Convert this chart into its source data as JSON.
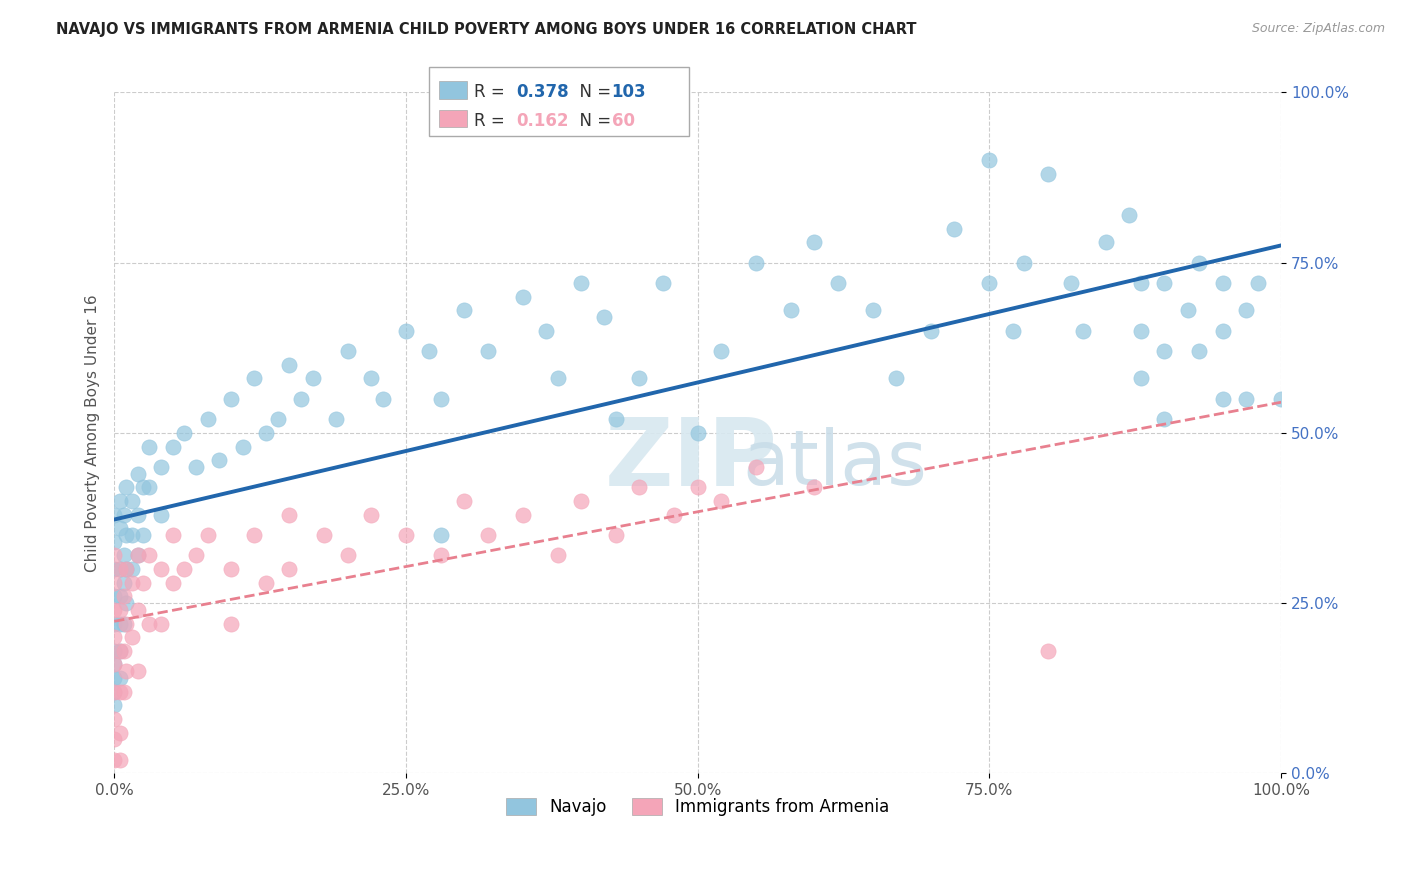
{
  "title": "NAVAJO VS IMMIGRANTS FROM ARMENIA CHILD POVERTY AMONG BOYS UNDER 16 CORRELATION CHART",
  "source": "Source: ZipAtlas.com",
  "ylabel": "Child Poverty Among Boys Under 16",
  "xlim": [
    0,
    1
  ],
  "ylim": [
    0,
    1
  ],
  "xticks": [
    0.0,
    0.25,
    0.5,
    0.75,
    1.0
  ],
  "xticklabels": [
    "0.0%",
    "25.0%",
    "50.0%",
    "75.0%",
    "100.0%"
  ],
  "yticks": [
    0.0,
    0.25,
    0.5,
    0.75,
    1.0
  ],
  "yticklabels": [
    "0.0%",
    "25.0%",
    "50.0%",
    "75.0%",
    "100.0%"
  ],
  "navajo_R": 0.378,
  "navajo_N": 103,
  "armenia_R": 0.162,
  "armenia_N": 60,
  "navajo_color": "#92c5de",
  "armenia_color": "#f4a5b8",
  "navajo_line_color": "#2166ac",
  "armenia_line_color": "#e8808f",
  "ytick_color": "#4472c4",
  "xtick_color": "#555555",
  "navajo_scatter": [
    [
      0.0,
      0.38
    ],
    [
      0.0,
      0.34
    ],
    [
      0.0,
      0.3
    ],
    [
      0.0,
      0.26
    ],
    [
      0.0,
      0.22
    ],
    [
      0.0,
      0.18
    ],
    [
      0.0,
      0.16
    ],
    [
      0.0,
      0.14
    ],
    [
      0.0,
      0.12
    ],
    [
      0.0,
      0.1
    ],
    [
      0.005,
      0.4
    ],
    [
      0.005,
      0.36
    ],
    [
      0.005,
      0.3
    ],
    [
      0.005,
      0.26
    ],
    [
      0.005,
      0.22
    ],
    [
      0.005,
      0.18
    ],
    [
      0.005,
      0.14
    ],
    [
      0.008,
      0.38
    ],
    [
      0.008,
      0.32
    ],
    [
      0.008,
      0.28
    ],
    [
      0.008,
      0.22
    ],
    [
      0.01,
      0.42
    ],
    [
      0.01,
      0.35
    ],
    [
      0.01,
      0.3
    ],
    [
      0.01,
      0.25
    ],
    [
      0.015,
      0.4
    ],
    [
      0.015,
      0.35
    ],
    [
      0.015,
      0.3
    ],
    [
      0.02,
      0.44
    ],
    [
      0.02,
      0.38
    ],
    [
      0.02,
      0.32
    ],
    [
      0.025,
      0.42
    ],
    [
      0.025,
      0.35
    ],
    [
      0.03,
      0.48
    ],
    [
      0.03,
      0.42
    ],
    [
      0.04,
      0.45
    ],
    [
      0.04,
      0.38
    ],
    [
      0.05,
      0.48
    ],
    [
      0.06,
      0.5
    ],
    [
      0.07,
      0.45
    ],
    [
      0.08,
      0.52
    ],
    [
      0.09,
      0.46
    ],
    [
      0.1,
      0.55
    ],
    [
      0.11,
      0.48
    ],
    [
      0.12,
      0.58
    ],
    [
      0.13,
      0.5
    ],
    [
      0.14,
      0.52
    ],
    [
      0.15,
      0.6
    ],
    [
      0.16,
      0.55
    ],
    [
      0.17,
      0.58
    ],
    [
      0.19,
      0.52
    ],
    [
      0.2,
      0.62
    ],
    [
      0.22,
      0.58
    ],
    [
      0.23,
      0.55
    ],
    [
      0.25,
      0.65
    ],
    [
      0.27,
      0.62
    ],
    [
      0.28,
      0.35
    ],
    [
      0.28,
      0.55
    ],
    [
      0.3,
      0.68
    ],
    [
      0.32,
      0.62
    ],
    [
      0.35,
      0.7
    ],
    [
      0.37,
      0.65
    ],
    [
      0.38,
      0.58
    ],
    [
      0.4,
      0.72
    ],
    [
      0.42,
      0.67
    ],
    [
      0.43,
      0.52
    ],
    [
      0.45,
      0.58
    ],
    [
      0.47,
      0.72
    ],
    [
      0.5,
      0.5
    ],
    [
      0.52,
      0.62
    ],
    [
      0.55,
      0.75
    ],
    [
      0.58,
      0.68
    ],
    [
      0.6,
      0.78
    ],
    [
      0.62,
      0.72
    ],
    [
      0.65,
      0.68
    ],
    [
      0.67,
      0.58
    ],
    [
      0.7,
      0.65
    ],
    [
      0.72,
      0.8
    ],
    [
      0.75,
      0.9
    ],
    [
      0.75,
      0.72
    ],
    [
      0.77,
      0.65
    ],
    [
      0.78,
      0.75
    ],
    [
      0.8,
      0.88
    ],
    [
      0.82,
      0.72
    ],
    [
      0.83,
      0.65
    ],
    [
      0.85,
      0.78
    ],
    [
      0.87,
      0.82
    ],
    [
      0.88,
      0.72
    ],
    [
      0.88,
      0.65
    ],
    [
      0.88,
      0.58
    ],
    [
      0.9,
      0.52
    ],
    [
      0.9,
      0.62
    ],
    [
      0.9,
      0.72
    ],
    [
      0.92,
      0.68
    ],
    [
      0.93,
      0.75
    ],
    [
      0.93,
      0.62
    ],
    [
      0.95,
      0.72
    ],
    [
      0.95,
      0.55
    ],
    [
      0.95,
      0.65
    ],
    [
      0.97,
      0.68
    ],
    [
      0.97,
      0.55
    ],
    [
      0.98,
      0.72
    ],
    [
      1.0,
      0.55
    ]
  ],
  "armenia_scatter": [
    [
      0.0,
      0.32
    ],
    [
      0.0,
      0.28
    ],
    [
      0.0,
      0.24
    ],
    [
      0.0,
      0.2
    ],
    [
      0.0,
      0.16
    ],
    [
      0.0,
      0.12
    ],
    [
      0.0,
      0.08
    ],
    [
      0.0,
      0.05
    ],
    [
      0.0,
      0.02
    ],
    [
      0.005,
      0.3
    ],
    [
      0.005,
      0.24
    ],
    [
      0.005,
      0.18
    ],
    [
      0.005,
      0.12
    ],
    [
      0.005,
      0.06
    ],
    [
      0.005,
      0.02
    ],
    [
      0.008,
      0.26
    ],
    [
      0.008,
      0.18
    ],
    [
      0.008,
      0.12
    ],
    [
      0.01,
      0.3
    ],
    [
      0.01,
      0.22
    ],
    [
      0.01,
      0.15
    ],
    [
      0.015,
      0.28
    ],
    [
      0.015,
      0.2
    ],
    [
      0.02,
      0.32
    ],
    [
      0.02,
      0.24
    ],
    [
      0.02,
      0.15
    ],
    [
      0.025,
      0.28
    ],
    [
      0.03,
      0.32
    ],
    [
      0.03,
      0.22
    ],
    [
      0.04,
      0.3
    ],
    [
      0.04,
      0.22
    ],
    [
      0.05,
      0.35
    ],
    [
      0.05,
      0.28
    ],
    [
      0.06,
      0.3
    ],
    [
      0.07,
      0.32
    ],
    [
      0.08,
      0.35
    ],
    [
      0.1,
      0.3
    ],
    [
      0.1,
      0.22
    ],
    [
      0.12,
      0.35
    ],
    [
      0.13,
      0.28
    ],
    [
      0.15,
      0.38
    ],
    [
      0.15,
      0.3
    ],
    [
      0.18,
      0.35
    ],
    [
      0.2,
      0.32
    ],
    [
      0.22,
      0.38
    ],
    [
      0.25,
      0.35
    ],
    [
      0.28,
      0.32
    ],
    [
      0.3,
      0.4
    ],
    [
      0.32,
      0.35
    ],
    [
      0.35,
      0.38
    ],
    [
      0.38,
      0.32
    ],
    [
      0.4,
      0.4
    ],
    [
      0.43,
      0.35
    ],
    [
      0.45,
      0.42
    ],
    [
      0.48,
      0.38
    ],
    [
      0.5,
      0.42
    ],
    [
      0.52,
      0.4
    ],
    [
      0.55,
      0.45
    ],
    [
      0.6,
      0.42
    ],
    [
      0.8,
      0.18
    ]
  ]
}
